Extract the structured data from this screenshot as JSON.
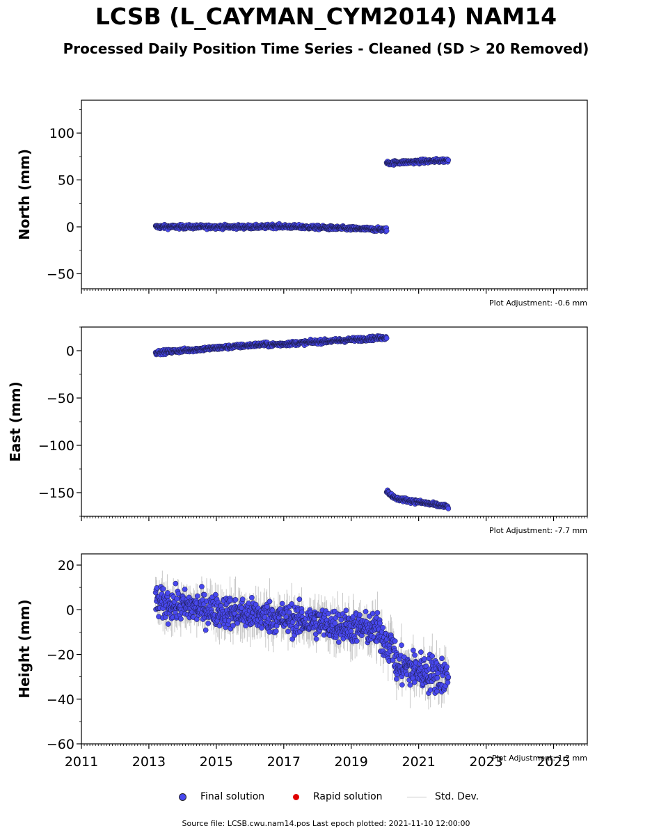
{
  "header": {
    "title": "LCSB (L_CAYMAN_CYM2014) NAM14",
    "subtitle": "Processed Daily Position Time Series - Cleaned (SD > 20 Removed)"
  },
  "footer": {
    "source": "Source file: LCSB.cwu.nam14.pos  Last epoch plotted: 2021-11-10 12:00:00"
  },
  "legend": {
    "final": "Final solution",
    "rapid": "Rapid solution",
    "std": "Std. Dev."
  },
  "colors": {
    "final": "#4848ee",
    "rapid": "#e00000",
    "std": "#c8c8c8"
  },
  "chart_data": [
    {
      "type": "scatter",
      "ylabel": "North (mm)",
      "adjustment": "Plot Adjustment: -0.6 mm",
      "xlim": [
        2011,
        2026
      ],
      "ylim": [
        -66,
        135
      ],
      "yticks": [
        -50,
        0,
        50,
        100
      ],
      "ytick_labels": [
        "−50",
        "0",
        "50",
        "100"
      ],
      "segments": [
        {
          "x": [
            2013.2,
            2016.5
          ],
          "y": [
            0,
            0
          ],
          "spread": 1.5
        },
        {
          "x": [
            2016.5,
            2020.05
          ],
          "y": [
            1,
            -3
          ],
          "spread": 1.5
        },
        {
          "x": [
            2020.05,
            2021.88
          ],
          "y": [
            68,
            71
          ],
          "spread": 1.5
        }
      ],
      "std": 0
    },
    {
      "type": "scatter",
      "ylabel": "East (mm)",
      "adjustment": "Plot Adjustment: -7.7 mm",
      "xlim": [
        2011,
        2026
      ],
      "ylim": [
        -175,
        25
      ],
      "yticks": [
        -150,
        -100,
        -50,
        0
      ],
      "ytick_labels": [
        "−150",
        "−100",
        "−50",
        "0"
      ],
      "segments": [
        {
          "x": [
            2013.2,
            2016.5
          ],
          "y": [
            -2,
            7
          ],
          "spread": 1.5
        },
        {
          "x": [
            2016.5,
            2020.05
          ],
          "y": [
            6,
            14
          ],
          "spread": 1.5
        },
        {
          "x": [
            2020.05,
            2020.3
          ],
          "y": [
            -148,
            -156
          ],
          "spread": 1.5
        },
        {
          "x": [
            2020.3,
            2021.88
          ],
          "y": [
            -156,
            -165
          ],
          "spread": 1.5
        }
      ],
      "std": 0
    },
    {
      "type": "scatter",
      "ylabel": "Height (mm)",
      "adjustment": "Plot Adjustment: 1.2 mm",
      "xlim": [
        2011,
        2026
      ],
      "ylim": [
        -60,
        25
      ],
      "yticks": [
        -60,
        -40,
        -20,
        0,
        20
      ],
      "ytick_labels": [
        "−60",
        "−40",
        "−20",
        "0",
        "20"
      ],
      "xticks": [
        2011,
        2013,
        2015,
        2017,
        2019,
        2021,
        2023,
        2025
      ],
      "xtick_labels": [
        "2011",
        "2013",
        "2015",
        "2017",
        "2019",
        "2021",
        "2023",
        "2025"
      ],
      "segments": [
        {
          "x": [
            2013.2,
            2016.5
          ],
          "y": [
            3,
            -3
          ],
          "spread": 5
        },
        {
          "x": [
            2016.5,
            2019.75
          ],
          "y": [
            -3,
            -9
          ],
          "spread": 5
        },
        {
          "x": [
            2019.75,
            2020.3
          ],
          "y": [
            -10,
            -18
          ],
          "spread": 6
        },
        {
          "x": [
            2020.3,
            2021.88
          ],
          "y": [
            -25,
            -30
          ],
          "spread": 6
        }
      ],
      "std": 7
    }
  ]
}
